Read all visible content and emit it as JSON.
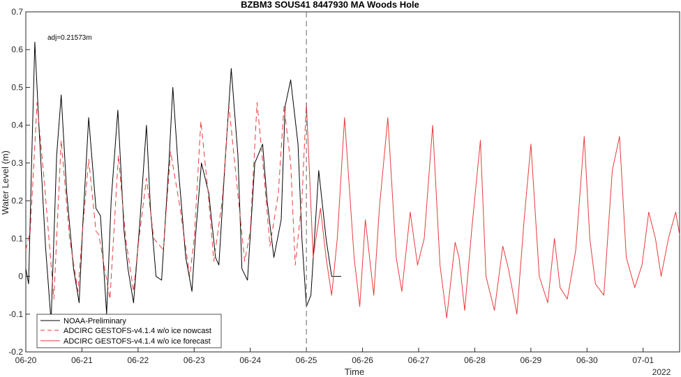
{
  "chart_data": {
    "type": "line",
    "title": "BZBM3 SOUS41 8447930 MA Woods Hole",
    "xlabel": "Time",
    "ylabel": "Water Level (m)",
    "year_label": "2022",
    "annotation": "adj=0.21573m",
    "xlim": [
      0,
      11.65
    ],
    "ylim": [
      -0.2,
      0.7
    ],
    "x_unit": "days since 06-20 00:00",
    "x_ticks": [
      0,
      1,
      2,
      3,
      4,
      5,
      6,
      7,
      8,
      9,
      10,
      11
    ],
    "x_tick_labels": [
      "06-20",
      "06-21",
      "06-22",
      "06-23",
      "06-24",
      "06-25",
      "06-26",
      "06-27",
      "06-28",
      "06-29",
      "06-30",
      "07-01"
    ],
    "y_ticks": [
      -0.2,
      -0.1,
      0,
      0.1,
      0.2,
      0.3,
      0.4,
      0.5,
      0.6,
      0.7
    ],
    "y_tick_labels": [
      "-0.2",
      "-0.1",
      "0",
      "0.1",
      "0.2",
      "0.3",
      "0.4",
      "0.5",
      "0.6",
      "0.7"
    ],
    "nowcast_end": 5.0,
    "legend_position": "bottom-left",
    "grid": false,
    "series": [
      {
        "name": "NOAA-Preliminary",
        "color": "#000000",
        "style": "solid",
        "x": [
          0,
          0.05,
          0.1,
          0.16,
          0.24,
          0.35,
          0.45,
          0.55,
          0.63,
          0.73,
          0.85,
          0.95,
          1.02,
          1.12,
          1.25,
          1.33,
          1.44,
          1.52,
          1.64,
          1.75,
          1.82,
          1.92,
          2.03,
          2.15,
          2.22,
          2.32,
          2.42,
          2.55,
          2.62,
          2.71,
          2.85,
          2.96,
          3.02,
          3.13,
          3.26,
          3.38,
          3.44,
          3.55,
          3.66,
          3.78,
          3.85,
          3.95,
          4.08,
          4.22,
          4.3,
          4.42,
          4.55,
          4.62,
          4.72,
          4.85,
          4.92,
          5.0,
          5.08,
          5.22,
          5.35,
          5.45,
          5.52,
          5.62
        ],
        "y": [
          0.02,
          -0.02,
          0.28,
          0.62,
          0.38,
          0.08,
          -0.12,
          0.32,
          0.48,
          0.22,
          0.02,
          -0.07,
          0.15,
          0.42,
          0.18,
          0.16,
          -0.1,
          0.2,
          0.44,
          0.12,
          0.02,
          -0.07,
          0.14,
          0.4,
          0.18,
          0.0,
          -0.01,
          0.3,
          0.5,
          0.3,
          0.05,
          -0.04,
          0.1,
          0.3,
          0.22,
          0.05,
          0.03,
          0.3,
          0.55,
          0.32,
          0.02,
          -0.01,
          0.3,
          0.35,
          0.2,
          0.05,
          0.15,
          0.45,
          0.52,
          0.35,
          0.1,
          -0.08,
          -0.05,
          0.28,
          0.1,
          0.0,
          0.0,
          0.0
        ]
      },
      {
        "name": "ADCIRC GESTOFS-v4.1.4 w/o ice nowcast",
        "color": "#e83a3a",
        "style": "dashed",
        "x": [
          0,
          0.08,
          0.2,
          0.33,
          0.5,
          0.63,
          0.78,
          0.93,
          1.0,
          1.12,
          1.25,
          1.3,
          1.5,
          1.65,
          1.78,
          1.92,
          2.0,
          2.15,
          2.28,
          2.45,
          2.58,
          2.75,
          2.92,
          3.0,
          3.12,
          3.25,
          3.35,
          3.5,
          3.62,
          3.75,
          3.9,
          4.0,
          4.12,
          4.25,
          4.35,
          4.5,
          4.6,
          4.72,
          4.8,
          4.92,
          5.0
        ],
        "y": [
          0.07,
          0.12,
          0.46,
          0.25,
          -0.06,
          0.36,
          0.1,
          -0.04,
          0.1,
          0.31,
          0.12,
          0.11,
          -0.06,
          0.32,
          0.1,
          -0.04,
          0.08,
          0.26,
          0.1,
          0.07,
          0.33,
          0.18,
          0.0,
          0.1,
          0.41,
          0.22,
          0.04,
          0.2,
          0.45,
          0.26,
          0.04,
          0.12,
          0.46,
          0.26,
          0.08,
          0.22,
          0.45,
          0.3,
          0.03,
          0.2,
          0.46
        ]
      },
      {
        "name": "ADCIRC GESTOFS-v4.1.4 w/o ice forecast",
        "color": "#e83a3a",
        "style": "solid",
        "x": [
          5.0,
          5.12,
          5.25,
          5.35,
          5.45,
          5.55,
          5.68,
          5.85,
          5.95,
          6.05,
          6.2,
          6.3,
          6.45,
          6.6,
          6.7,
          6.85,
          6.98,
          7.1,
          7.25,
          7.38,
          7.5,
          7.65,
          7.72,
          7.82,
          7.95,
          8.1,
          8.2,
          8.35,
          8.5,
          8.6,
          8.75,
          8.88,
          9.0,
          9.15,
          9.3,
          9.42,
          9.52,
          9.65,
          9.8,
          9.95,
          10.05,
          10.15,
          10.3,
          10.45,
          10.58,
          10.7,
          10.85,
          10.98,
          11.1,
          11.22,
          11.32,
          11.45,
          11.58,
          11.65
        ],
        "y": [
          0.46,
          0.05,
          0.18,
          0.05,
          -0.05,
          0.1,
          0.42,
          0.05,
          -0.08,
          0.15,
          -0.05,
          0.18,
          0.42,
          0.05,
          -0.04,
          0.17,
          0.03,
          0.1,
          0.4,
          0.03,
          -0.11,
          0.09,
          0.05,
          -0.09,
          0.13,
          0.36,
          0.0,
          -0.09,
          0.08,
          0.02,
          -0.1,
          0.15,
          0.35,
          0.0,
          -0.07,
          0.1,
          -0.03,
          -0.06,
          0.07,
          0.37,
          0.1,
          -0.02,
          -0.05,
          0.28,
          0.37,
          0.05,
          -0.03,
          0.03,
          0.17,
          0.1,
          0.0,
          0.1,
          0.17,
          0.11
        ]
      }
    ]
  }
}
